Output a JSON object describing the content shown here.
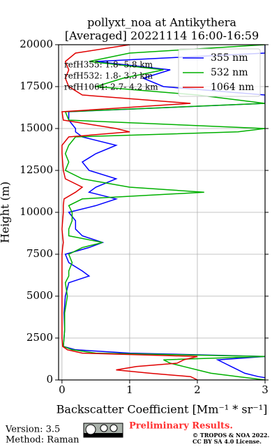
{
  "chart_data": {
    "type": "line",
    "orientation": "vertical",
    "title": "pollyxt_noa at Antikythera",
    "subtitle": "[Averaged] 20221114 16:00-16:59",
    "x_label": "Backscatter Coefficient [Mm⁻¹ * sr⁻¹]",
    "y_label": "Height (m)",
    "y": [
      0,
      200,
      400,
      600,
      800,
      1000,
      1200,
      1400,
      1600,
      1800,
      2000,
      2500,
      3000,
      4000,
      5000,
      5800,
      6200,
      6500,
      7000,
      7500,
      7900,
      8200,
      8600,
      9000,
      9500,
      10000,
      10400,
      10800,
      11200,
      11500,
      12000,
      12500,
      13000,
      13500,
      14000,
      14500,
      14800,
      15000,
      15500,
      16000,
      16500,
      17000,
      17500,
      18000,
      18500,
      19000,
      19500,
      20000
    ],
    "series": [
      {
        "name": "355 nm",
        "color": "#0000ff",
        "values": [
          3.2,
          2.9,
          2.7,
          2.6,
          2.5,
          2.4,
          2.3,
          3.0,
          1.0,
          0.2,
          0.02,
          0.03,
          0.04,
          0.03,
          0.05,
          0.1,
          0.4,
          0.3,
          0.1,
          0.05,
          0.4,
          0.6,
          0.3,
          0.2,
          0.2,
          0.1,
          0.5,
          0.8,
          0.4,
          0.5,
          0.8,
          0.4,
          0.3,
          0.5,
          0.8,
          0.3,
          0.2,
          0.2,
          0.1,
          0.1,
          3.0,
          3.0,
          1.5,
          1.2,
          1.6,
          0.5,
          3.0,
          3.0
        ]
      },
      {
        "name": "532 nm",
        "color": "#00b000",
        "values": [
          3.0,
          2.6,
          2.2,
          2.0,
          1.8,
          1.6,
          1.5,
          3.0,
          0.5,
          0.15,
          0.02,
          0.03,
          0.04,
          0.04,
          0.08,
          0.05,
          0.1,
          0.1,
          0.15,
          0.1,
          0.3,
          0.6,
          0.1,
          0.1,
          0.15,
          0.15,
          0.1,
          0.3,
          2.1,
          1.0,
          0.3,
          0.05,
          0.1,
          0.05,
          0.1,
          0.2,
          2.6,
          3.0,
          0.1,
          0.05,
          3.0,
          2.0,
          0.5,
          0.9,
          1.5,
          0.4,
          1.0,
          3.0
        ]
      },
      {
        "name": "1064 nm",
        "color": "#e00000",
        "values": [
          2.0,
          1.9,
          1.3,
          0.8,
          1.1,
          1.7,
          1.8,
          2.0,
          0.3,
          0.08,
          0.01,
          0.0,
          0.0,
          0.0,
          0.0,
          0.0,
          0.0,
          0.0,
          0.0,
          0.0,
          0.01,
          0.02,
          0.01,
          0.0,
          0.01,
          0.02,
          0.02,
          0.03,
          0.2,
          0.3,
          0.05,
          0.02,
          0.01,
          0.0,
          0.0,
          0.1,
          1.0,
          0.8,
          0.02,
          0.0,
          1.9,
          0.3,
          0.1,
          0.05,
          0.1,
          0.05,
          0.2,
          1.0
        ]
      }
    ],
    "xlim": [
      -0.05,
      3
    ],
    "ylim": [
      0,
      20000
    ],
    "xticks": [
      0,
      1,
      2,
      3
    ],
    "yticks": [
      0,
      2500,
      5000,
      7500,
      10000,
      12500,
      15000,
      17500,
      20000
    ],
    "grid": true,
    "legend": "upper right",
    "annotations": [
      "refH355:  1.8- 5.8 km",
      "refH532:  1.8- 3.3 km",
      "refH1064:  2.7- 4.2 km"
    ],
    "version": "Version: 3.5",
    "method": "Method: Raman",
    "status": "Preliminary Results.",
    "copyright": [
      "© TROPOS & NOA 2022.",
      "CC BY SA 4.0 License."
    ]
  }
}
